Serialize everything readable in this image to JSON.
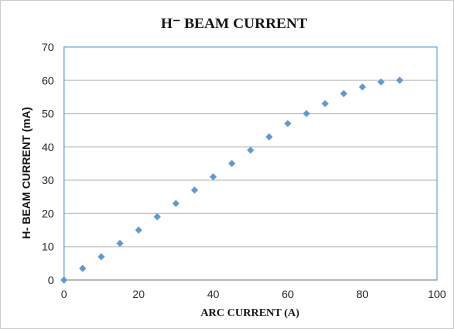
{
  "chart_data": {
    "type": "scatter",
    "title": "H⁻ BEAM CURRENT",
    "xlabel": "ARC CURRENT (A)",
    "ylabel": "H- BEAM CURRENT (mA)",
    "xlim": [
      0,
      100
    ],
    "ylim": [
      0,
      70
    ],
    "xticks": [
      "0",
      "20",
      "40",
      "60",
      "80",
      "100"
    ],
    "yticks": [
      "0",
      "10",
      "20",
      "30",
      "40",
      "50",
      "60",
      "70"
    ],
    "grid": "horizontal",
    "marker_color": "#5b9bd5",
    "marker": "diamond",
    "points": [
      {
        "x": 0,
        "y": 0
      },
      {
        "x": 5,
        "y": 3.5
      },
      {
        "x": 10,
        "y": 7
      },
      {
        "x": 15,
        "y": 11
      },
      {
        "x": 20,
        "y": 15
      },
      {
        "x": 25,
        "y": 19
      },
      {
        "x": 30,
        "y": 23
      },
      {
        "x": 35,
        "y": 27
      },
      {
        "x": 40,
        "y": 31
      },
      {
        "x": 45,
        "y": 35
      },
      {
        "x": 50,
        "y": 39
      },
      {
        "x": 55,
        "y": 43
      },
      {
        "x": 60,
        "y": 47
      },
      {
        "x": 65,
        "y": 50
      },
      {
        "x": 70,
        "y": 53
      },
      {
        "x": 75,
        "y": 56
      },
      {
        "x": 80,
        "y": 58
      },
      {
        "x": 85,
        "y": 59.5
      },
      {
        "x": 90,
        "y": 60
      }
    ]
  }
}
